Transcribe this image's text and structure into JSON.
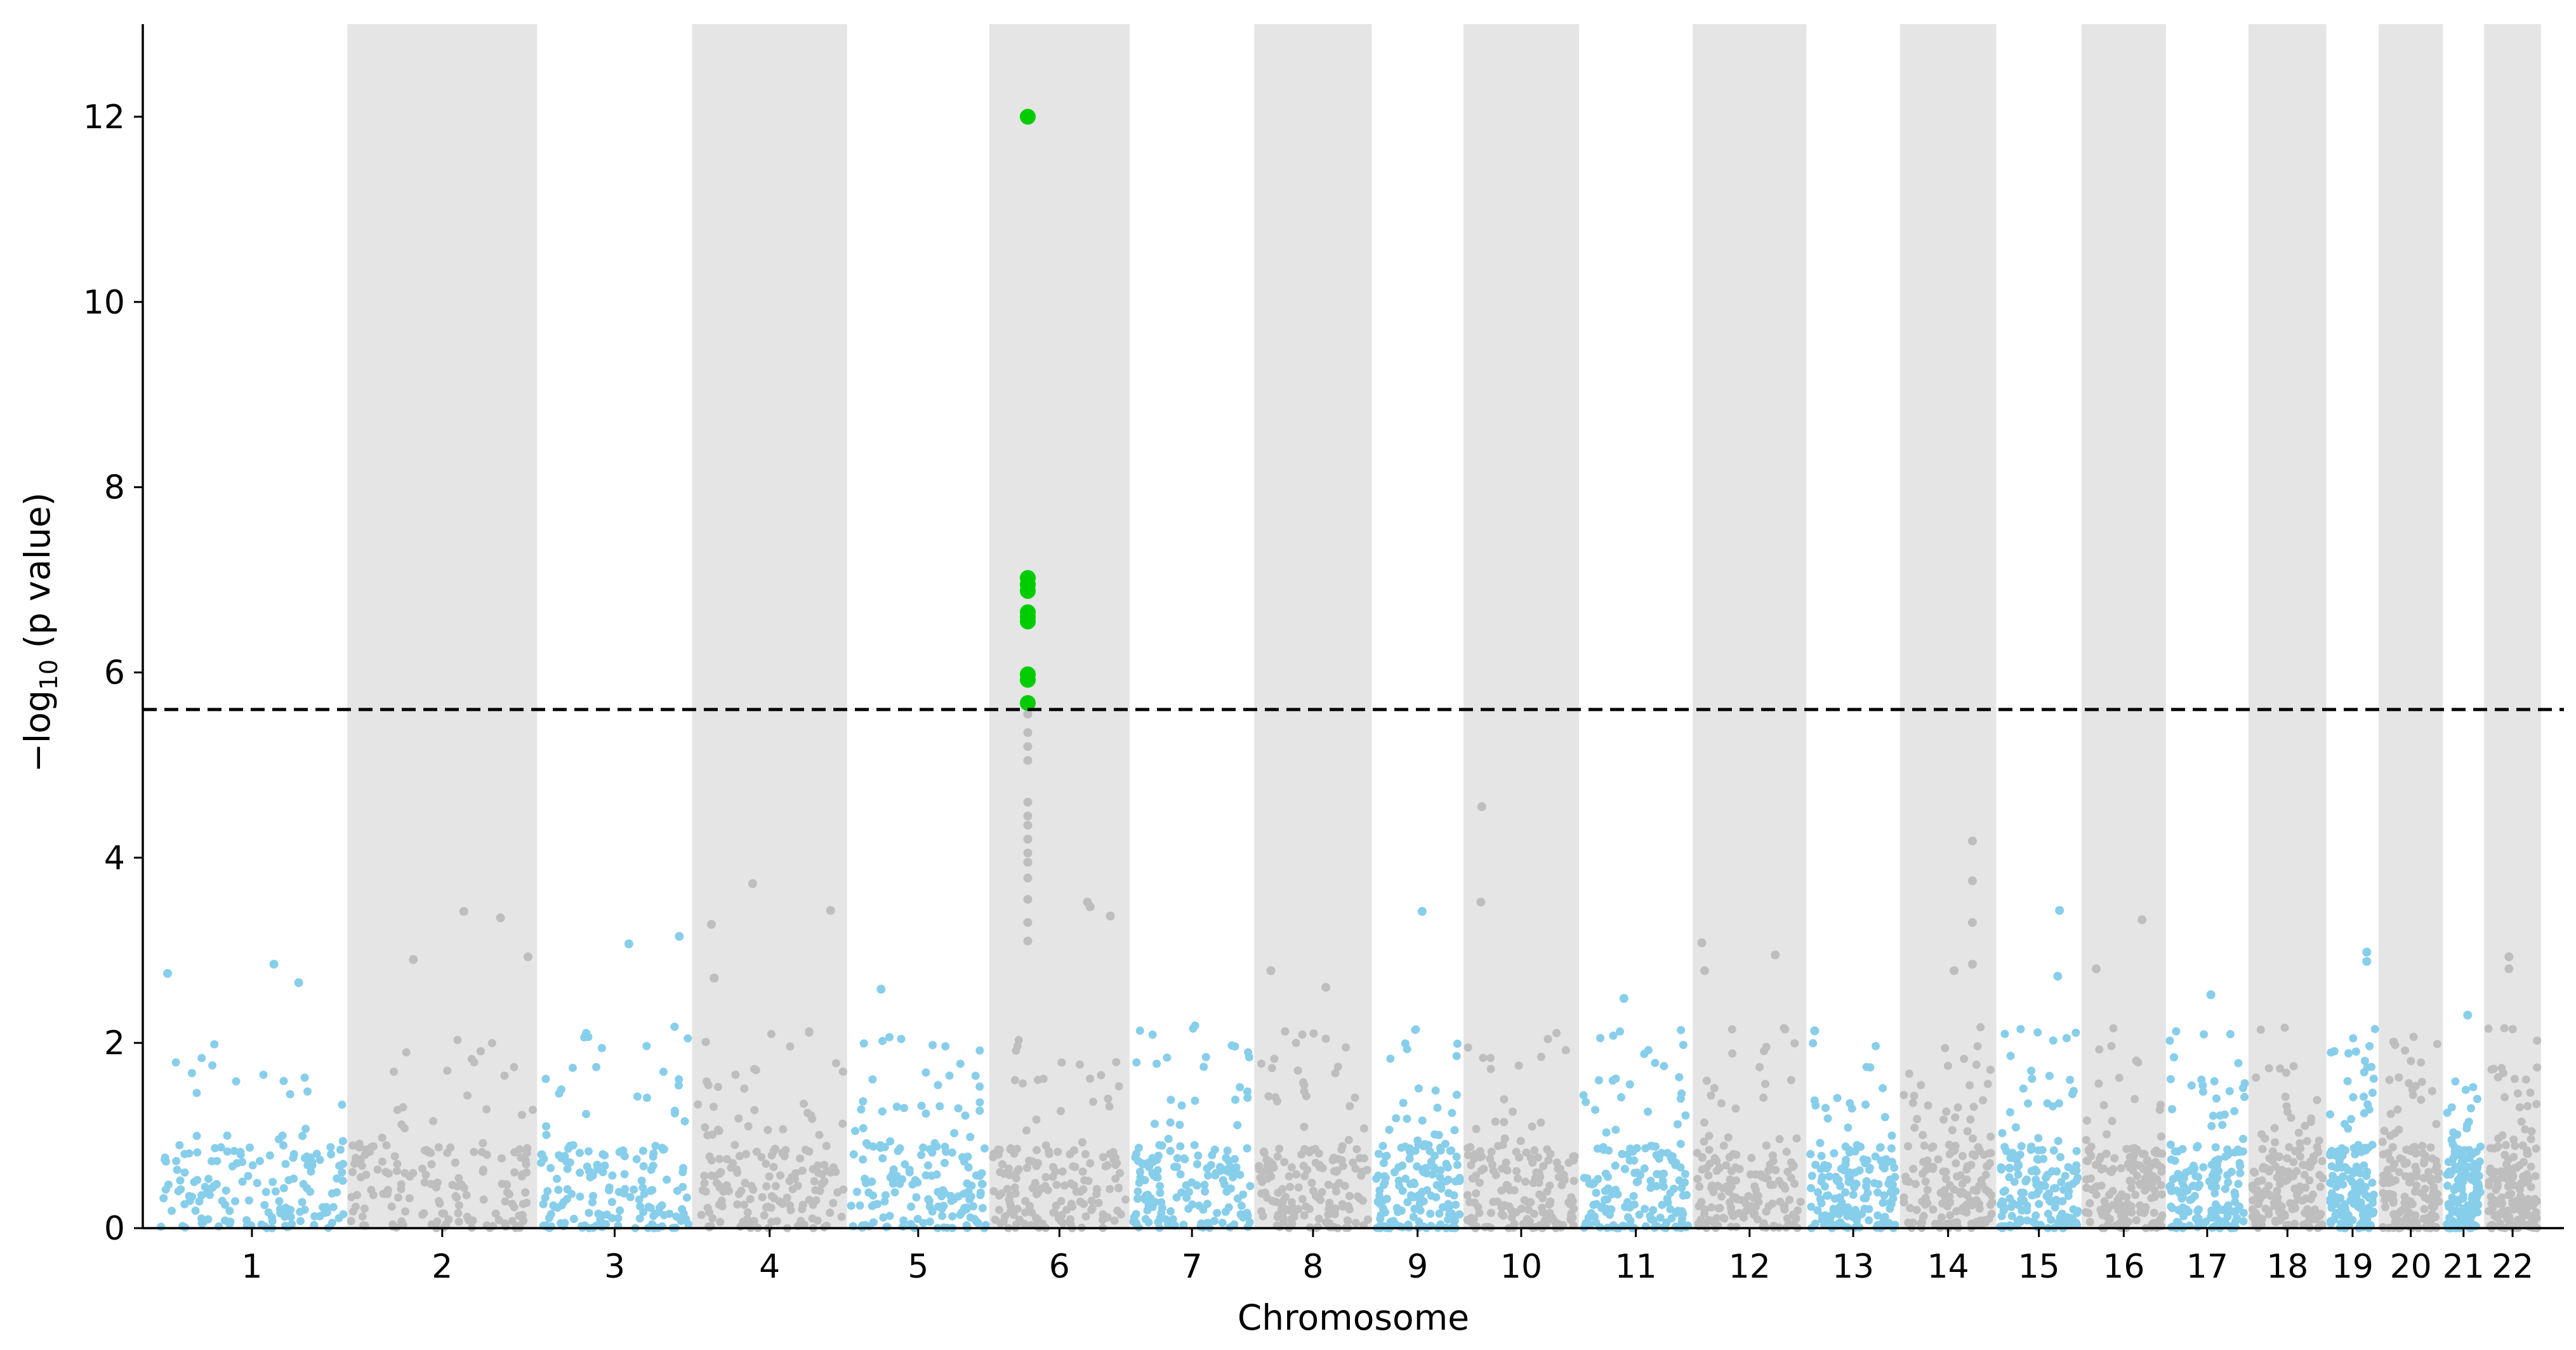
{
  "chart_data": {
    "type": "scatter",
    "subtype": "manhattan",
    "title": "",
    "xlabel": "Chromosome",
    "ylabel": {
      "prefix": "−log",
      "subscript": "10",
      "suffix": " (p value)"
    },
    "ylim": [
      0,
      13
    ],
    "yticks": [
      0,
      2,
      4,
      6,
      8,
      10,
      12
    ],
    "threshold": 5.6,
    "colors": {
      "odd_chromosome": "#87ceeb",
      "even_chromosome": "#bebebe",
      "significant": "#00cc00",
      "band": "#e5e5e5",
      "threshold_line": "#000000"
    },
    "chromosomes": [
      {
        "label": "1",
        "start": 0.0,
        "end": 20.8
      },
      {
        "label": "2",
        "start": 20.8,
        "end": 41.5
      },
      {
        "label": "3",
        "start": 41.5,
        "end": 58.4
      },
      {
        "label": "4",
        "start": 58.4,
        "end": 75.3
      },
      {
        "label": "5",
        "start": 75.3,
        "end": 90.8
      },
      {
        "label": "6",
        "start": 90.8,
        "end": 106.1
      },
      {
        "label": "7",
        "start": 106.1,
        "end": 119.7
      },
      {
        "label": "8",
        "start": 119.7,
        "end": 132.5
      },
      {
        "label": "9",
        "start": 132.5,
        "end": 142.5
      },
      {
        "label": "10",
        "start": 142.5,
        "end": 155.1
      },
      {
        "label": "11",
        "start": 155.1,
        "end": 167.5
      },
      {
        "label": "12",
        "start": 167.5,
        "end": 179.9
      },
      {
        "label": "13",
        "start": 179.9,
        "end": 190.1
      },
      {
        "label": "14",
        "start": 190.1,
        "end": 200.6
      },
      {
        "label": "15",
        "start": 200.6,
        "end": 209.9
      },
      {
        "label": "16",
        "start": 209.9,
        "end": 219.1
      },
      {
        "label": "17",
        "start": 219.1,
        "end": 228.1
      },
      {
        "label": "18",
        "start": 228.1,
        "end": 236.6
      },
      {
        "label": "19",
        "start": 236.6,
        "end": 242.3
      },
      {
        "label": "20",
        "start": 242.3,
        "end": 249.3
      },
      {
        "label": "21",
        "start": 249.3,
        "end": 253.8
      },
      {
        "label": "22",
        "start": 253.8,
        "end": 260.0
      }
    ],
    "xlim": [
      -1.5,
      262.5
    ],
    "significant_snps": [
      {
        "chromosome": "6",
        "pos": 95.0,
        "p": 12.0
      },
      {
        "chromosome": "6",
        "pos": 95.0,
        "p": 7.02
      },
      {
        "chromosome": "6",
        "pos": 95.0,
        "p": 6.95
      },
      {
        "chromosome": "6",
        "pos": 95.0,
        "p": 6.88
      },
      {
        "chromosome": "6",
        "pos": 95.0,
        "p": 6.65
      },
      {
        "chromosome": "6",
        "pos": 95.0,
        "p": 6.6
      },
      {
        "chromosome": "6",
        "pos": 95.0,
        "p": 6.55
      },
      {
        "chromosome": "6",
        "pos": 95.0,
        "p": 5.98
      },
      {
        "chromosome": "6",
        "pos": 95.0,
        "p": 5.92
      },
      {
        "chromosome": "6",
        "pos": 95.0,
        "p": 5.67
      }
    ],
    "notable_snps": [
      {
        "chromosome": "1",
        "pos": 1.2,
        "p": 2.75
      },
      {
        "chromosome": "1",
        "pos": 12.8,
        "p": 2.85
      },
      {
        "chromosome": "1",
        "pos": 15.5,
        "p": 2.65
      },
      {
        "chromosome": "2",
        "pos": 28.0,
        "p": 2.9
      },
      {
        "chromosome": "2",
        "pos": 33.5,
        "p": 3.42
      },
      {
        "chromosome": "2",
        "pos": 37.5,
        "p": 3.35
      },
      {
        "chromosome": "2",
        "pos": 40.5,
        "p": 2.93
      },
      {
        "chromosome": "3",
        "pos": 51.5,
        "p": 3.07
      },
      {
        "chromosome": "3",
        "pos": 57.0,
        "p": 3.15
      },
      {
        "chromosome": "4",
        "pos": 60.5,
        "p": 3.28
      },
      {
        "chromosome": "4",
        "pos": 60.8,
        "p": 2.7
      },
      {
        "chromosome": "4",
        "pos": 65.0,
        "p": 3.72
      },
      {
        "chromosome": "4",
        "pos": 73.5,
        "p": 3.43
      },
      {
        "chromosome": "5",
        "pos": 79.0,
        "p": 2.58
      },
      {
        "chromosome": "6",
        "pos": 95.0,
        "p": 5.55
      },
      {
        "chromosome": "6",
        "pos": 95.0,
        "p": 5.35
      },
      {
        "chromosome": "6",
        "pos": 95.0,
        "p": 5.2
      },
      {
        "chromosome": "6",
        "pos": 95.0,
        "p": 5.05
      },
      {
        "chromosome": "6",
        "pos": 95.0,
        "p": 4.6
      },
      {
        "chromosome": "6",
        "pos": 95.0,
        "p": 4.45
      },
      {
        "chromosome": "6",
        "pos": 95.0,
        "p": 4.35
      },
      {
        "chromosome": "6",
        "pos": 95.0,
        "p": 4.2
      },
      {
        "chromosome": "6",
        "pos": 95.0,
        "p": 4.05
      },
      {
        "chromosome": "6",
        "pos": 95.0,
        "p": 3.95
      },
      {
        "chromosome": "6",
        "pos": 95.0,
        "p": 3.78
      },
      {
        "chromosome": "6",
        "pos": 95.0,
        "p": 3.55
      },
      {
        "chromosome": "6",
        "pos": 95.0,
        "p": 3.3
      },
      {
        "chromosome": "6",
        "pos": 95.0,
        "p": 3.1
      },
      {
        "chromosome": "6",
        "pos": 101.5,
        "p": 3.52
      },
      {
        "chromosome": "6",
        "pos": 101.8,
        "p": 3.47
      },
      {
        "chromosome": "6",
        "pos": 104.0,
        "p": 3.37
      },
      {
        "chromosome": "8",
        "pos": 121.5,
        "p": 2.78
      },
      {
        "chromosome": "8",
        "pos": 127.5,
        "p": 2.6
      },
      {
        "chromosome": "9",
        "pos": 138.0,
        "p": 3.42
      },
      {
        "chromosome": "10",
        "pos": 144.5,
        "p": 4.55
      },
      {
        "chromosome": "10",
        "pos": 144.4,
        "p": 3.52
      },
      {
        "chromosome": "11",
        "pos": 160.0,
        "p": 2.48
      },
      {
        "chromosome": "12",
        "pos": 168.5,
        "p": 3.08
      },
      {
        "chromosome": "12",
        "pos": 168.8,
        "p": 2.78
      },
      {
        "chromosome": "12",
        "pos": 176.5,
        "p": 2.95
      },
      {
        "chromosome": "13",
        "pos": 180.8,
        "p": 2.13
      },
      {
        "chromosome": "14",
        "pos": 196.0,
        "p": 2.78
      },
      {
        "chromosome": "14",
        "pos": 198.0,
        "p": 4.18
      },
      {
        "chromosome": "14",
        "pos": 198.0,
        "p": 3.75
      },
      {
        "chromosome": "14",
        "pos": 198.0,
        "p": 3.3
      },
      {
        "chromosome": "14",
        "pos": 198.0,
        "p": 2.85
      },
      {
        "chromosome": "15",
        "pos": 207.5,
        "p": 3.43
      },
      {
        "chromosome": "15",
        "pos": 207.3,
        "p": 2.72
      },
      {
        "chromosome": "16",
        "pos": 211.5,
        "p": 2.8
      },
      {
        "chromosome": "16",
        "pos": 216.5,
        "p": 3.33
      },
      {
        "chromosome": "17",
        "pos": 224.0,
        "p": 2.52
      },
      {
        "chromosome": "19",
        "pos": 241.0,
        "p": 2.98
      },
      {
        "chromosome": "19",
        "pos": 241.0,
        "p": 2.88
      },
      {
        "chromosome": "21",
        "pos": 252.0,
        "p": 2.3
      },
      {
        "chromosome": "22",
        "pos": 256.5,
        "p": 2.93
      },
      {
        "chromosome": "22",
        "pos": 256.5,
        "p": 2.8
      }
    ],
    "background_snps_per_chromosome": 160,
    "background_max_p": 2.2
  }
}
